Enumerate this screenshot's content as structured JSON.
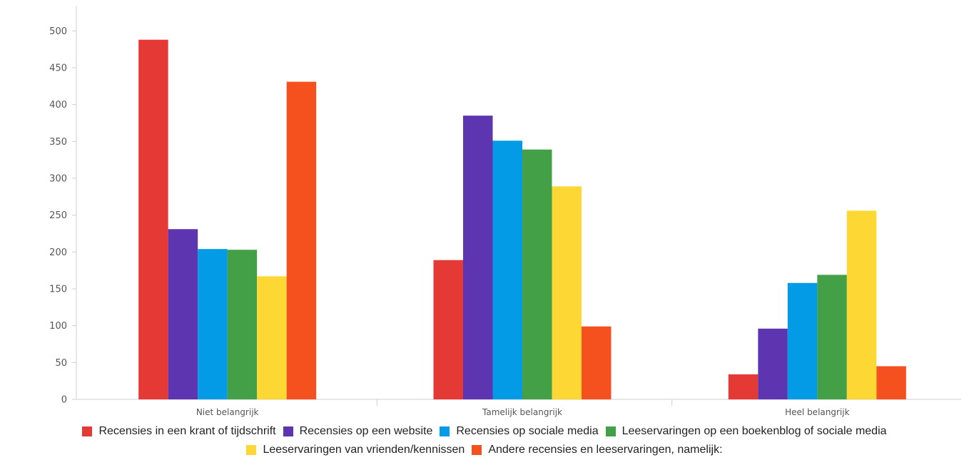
{
  "chart_data": {
    "type": "bar",
    "title": "",
    "xlabel": "",
    "ylabel": "",
    "ylim": [
      0,
      540
    ],
    "yticks": [
      0,
      50,
      100,
      150,
      200,
      250,
      300,
      350,
      400,
      450,
      500
    ],
    "yticklabels": [
      "0",
      "50",
      "100",
      "150",
      "200",
      "250",
      "300",
      "350",
      "400",
      "450",
      "500"
    ],
    "grid": false,
    "legend_position": "bottom",
    "categories": [
      "Niet belangrijk",
      "Tamelijk belangrijk",
      "Heel belangrijk"
    ],
    "series": [
      {
        "name": "Recensies in een krant of tijdschrift",
        "color": "#E53935",
        "values": [
          488,
          189,
          34
        ]
      },
      {
        "name": "Recensies op een website",
        "color": "#5E35B1",
        "values": [
          231,
          385,
          96
        ]
      },
      {
        "name": "Recensies op sociale media",
        "color": "#039BE5",
        "values": [
          204,
          351,
          158
        ]
      },
      {
        "name": "Leeservaringen op een boekenblog of sociale media",
        "color": "#43A047",
        "values": [
          203,
          339,
          169
        ]
      },
      {
        "name": "Leeservaringen van vrienden/kennissen",
        "color": "#FDD835",
        "values": [
          167,
          289,
          256
        ]
      },
      {
        "name": "Andere recensies en leeservaringen, namelijk:",
        "color": "#F4511E",
        "values": [
          431,
          99,
          45
        ]
      }
    ]
  }
}
